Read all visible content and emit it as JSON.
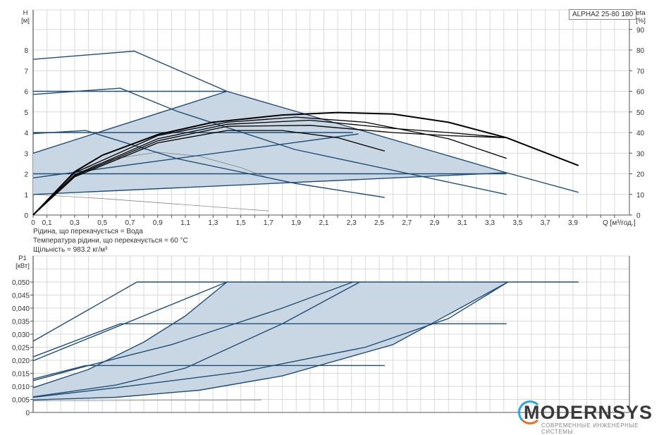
{
  "legend_label": "ALPHA2 25-80 180",
  "notes": [
    "Рідина, що перекачується = Вода",
    "Температура рідини, що перекачується = 60 °C",
    "Щільність = 983.2 кг/м³"
  ],
  "logo": {
    "text": "MODERNSYS",
    "subtitle": "СОВРЕМЕННЫЕ ИНЖЕНЕРНЫЕ СИСТЕМЫ"
  },
  "colors": {
    "curve": "#1f4e79",
    "efficiency": "#000000",
    "fill": "#c9d6e3",
    "grid": "#d9d9d9",
    "thin": "#777777"
  },
  "chart_data": [
    {
      "type": "line",
      "title": "",
      "xlabel": "Q [м³/год.]",
      "ylabel_left": "H [м]",
      "ylabel_right": "eta [%]",
      "xlim": [
        0,
        4.2
      ],
      "ylim_left": [
        0,
        9
      ],
      "ylim_right": [
        0,
        90
      ],
      "grid": true,
      "x_ticks": [
        "0",
        "0,1",
        "0,3",
        "0,5",
        "0,7",
        "0,9",
        "1,1",
        "1,3",
        "1,5",
        "1,7",
        "1,9",
        "2,1",
        "2,3",
        "2,5",
        "2,7",
        "2,9",
        "3,1",
        "3,3",
        "3,5",
        "3,7",
        "3,9"
      ],
      "x_tick_values": [
        0,
        0.1,
        0.3,
        0.5,
        0.7,
        0.9,
        1.1,
        1.3,
        1.5,
        1.7,
        1.9,
        2.1,
        2.3,
        2.5,
        2.7,
        2.9,
        3.1,
        3.3,
        3.5,
        3.7,
        3.9
      ],
      "y_ticks_left": [
        "0",
        "1",
        "2",
        "3",
        "4",
        "5",
        "6",
        "7",
        "8"
      ],
      "y_ticks_right": [
        "0",
        "10",
        "20",
        "30",
        "40",
        "50",
        "60",
        "70",
        "80",
        "90"
      ],
      "shaded_region": [
        [
          0,
          1.0
        ],
        [
          0,
          3.0
        ],
        [
          1.4,
          6.0
        ],
        [
          3.42,
          2.05
        ]
      ],
      "head_curves": [
        [
          [
            0,
            7.55
          ],
          [
            0.73,
            7.95
          ],
          [
            1.4,
            6.0
          ],
          [
            3.42,
            2.05
          ],
          [
            3.94,
            1.1
          ]
        ],
        [
          [
            0,
            5.85
          ],
          [
            0.63,
            6.15
          ],
          [
            1.04,
            5.03
          ],
          [
            1.89,
            3.18
          ],
          [
            3.42,
            1.0
          ]
        ],
        [
          [
            0,
            3.95
          ],
          [
            0.38,
            4.1
          ],
          [
            1.04,
            2.73
          ],
          [
            1.89,
            1.54
          ],
          [
            2.54,
            0.85
          ]
        ],
        [
          [
            0,
            6.0
          ],
          [
            1.4,
            6.0
          ]
        ],
        [
          [
            0,
            3.0
          ],
          [
            1.4,
            6.0
          ]
        ],
        [
          [
            0,
            4.0
          ],
          [
            2.31,
            4.0
          ]
        ],
        [
          [
            0,
            1.8
          ],
          [
            2.35,
            3.93
          ]
        ],
        [
          [
            0,
            2.0
          ],
          [
            3.42,
            2.0
          ]
        ],
        [
          [
            0,
            1.0
          ],
          [
            3.42,
            2.05
          ]
        ]
      ],
      "thin_curves": [
        [
          [
            0.3,
            2.1
          ],
          [
            0.6,
            2.75
          ],
          [
            0.9,
            3.05
          ],
          [
            1.2,
            2.85
          ],
          [
            1.5,
            2.3
          ],
          [
            1.7,
            1.8
          ]
        ],
        [
          [
            0,
            1.0
          ],
          [
            0.5,
            0.8
          ],
          [
            1.0,
            0.55
          ],
          [
            1.4,
            0.35
          ],
          [
            1.7,
            0.2
          ]
        ]
      ],
      "efficiency_curves": [
        [
          [
            0,
            0
          ],
          [
            0.3,
            21
          ],
          [
            0.5,
            29
          ],
          [
            0.9,
            39
          ],
          [
            1.3,
            45
          ],
          [
            1.8,
            48.5
          ],
          [
            2.2,
            49.7
          ],
          [
            2.6,
            49
          ],
          [
            3.0,
            45
          ],
          [
            3.42,
            37.5
          ],
          [
            3.94,
            24
          ]
        ],
        [
          [
            0,
            0
          ],
          [
            0.3,
            20.5
          ],
          [
            0.9,
            38.5
          ],
          [
            1.4,
            45
          ],
          [
            1.9,
            47.5
          ],
          [
            2.4,
            45
          ],
          [
            3.0,
            37
          ],
          [
            3.42,
            27.5
          ]
        ],
        [
          [
            0,
            0
          ],
          [
            0.3,
            19.5
          ],
          [
            0.9,
            37
          ],
          [
            1.4,
            44
          ],
          [
            2.0,
            46
          ],
          [
            2.6,
            42
          ],
          [
            3.0,
            40
          ],
          [
            3.42,
            37.5
          ]
        ],
        [
          [
            0,
            0
          ],
          [
            0.3,
            19
          ],
          [
            0.9,
            36
          ],
          [
            1.4,
            43
          ],
          [
            2.0,
            43.5
          ],
          [
            2.6,
            40
          ],
          [
            3.0,
            38.5
          ],
          [
            3.42,
            37.5
          ]
        ],
        [
          [
            0,
            0
          ],
          [
            0.3,
            18.5
          ],
          [
            0.9,
            35
          ],
          [
            1.4,
            41
          ],
          [
            1.8,
            41
          ],
          [
            2.2,
            37.5
          ],
          [
            2.54,
            31
          ]
        ]
      ]
    },
    {
      "type": "line",
      "title": "",
      "xlabel": "",
      "ylabel": "P1 [кВт]",
      "xlim": [
        0,
        4.2
      ],
      "ylim": [
        0,
        0.055
      ],
      "grid": true,
      "y_ticks": [
        "0",
        "0,005",
        "0,010",
        "0,015",
        "0,020",
        "0,025",
        "0,030",
        "0,035",
        "0,040",
        "0,045",
        "0,050"
      ],
      "y_tick_values": [
        0,
        0.005,
        0.01,
        0.015,
        0.02,
        0.025,
        0.03,
        0.035,
        0.04,
        0.045,
        0.05
      ],
      "shaded_region": [
        [
          0,
          0.0048
        ],
        [
          0,
          0.0095
        ],
        [
          0.4,
          0.0165
        ],
        [
          0.8,
          0.027
        ],
        [
          1.1,
          0.037
        ],
        [
          1.4,
          0.05
        ],
        [
          3.43,
          0.05
        ],
        [
          2.6,
          0.026
        ],
        [
          1.8,
          0.014
        ],
        [
          1.2,
          0.0085
        ],
        [
          0.6,
          0.0058
        ]
      ],
      "power_curves": [
        [
          [
            0,
            0.0273
          ],
          [
            0.75,
            0.05
          ],
          [
            3.94,
            0.05
          ]
        ],
        [
          [
            0,
            0.0213
          ],
          [
            0.63,
            0.034
          ],
          [
            3.42,
            0.034
          ]
        ],
        [
          [
            0,
            0.0198
          ],
          [
            1.4,
            0.05
          ]
        ],
        [
          [
            0,
            0.0128
          ],
          [
            0.38,
            0.018
          ],
          [
            2.54,
            0.018
          ]
        ],
        [
          [
            0,
            0.0095
          ],
          [
            0.4,
            0.0165
          ],
          [
            0.8,
            0.027
          ],
          [
            1.1,
            0.037
          ],
          [
            1.4,
            0.05
          ]
        ],
        [
          [
            0,
            0.0122
          ],
          [
            0.4,
            0.018
          ],
          [
            1.0,
            0.026
          ],
          [
            1.8,
            0.04
          ],
          [
            2.31,
            0.05
          ]
        ],
        [
          [
            0,
            0.006
          ],
          [
            0.6,
            0.0105
          ],
          [
            1.1,
            0.017
          ],
          [
            1.8,
            0.034
          ],
          [
            2.36,
            0.05
          ]
        ],
        [
          [
            0,
            0.0058
          ],
          [
            0.6,
            0.0095
          ],
          [
            1.5,
            0.0155
          ],
          [
            2.4,
            0.025
          ],
          [
            3.0,
            0.036
          ],
          [
            3.43,
            0.05
          ]
        ],
        [
          [
            0,
            0.0048
          ],
          [
            0.6,
            0.0058
          ],
          [
            1.2,
            0.0085
          ],
          [
            1.8,
            0.014
          ],
          [
            2.6,
            0.026
          ],
          [
            3.43,
            0.05
          ]
        ]
      ],
      "thin_curves": [
        [
          [
            0,
            0.0045
          ],
          [
            1.65,
            0.0048
          ]
        ]
      ]
    }
  ]
}
